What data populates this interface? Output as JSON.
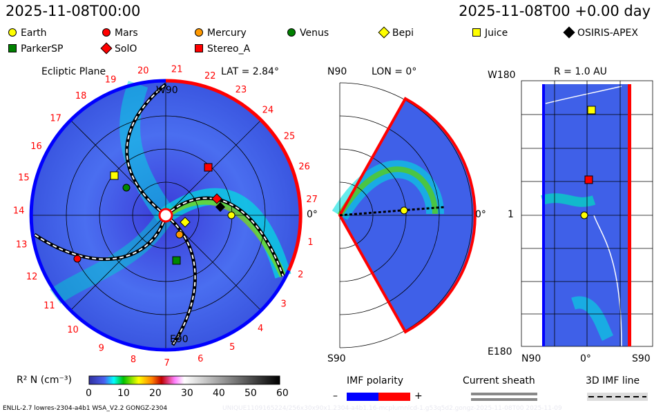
{
  "header": {
    "left_time": "2025-11-08T00:00",
    "right_time": "2025-11-08T00 +0.00 day"
  },
  "legend": [
    {
      "label": "Earth",
      "shape": "circle",
      "color": "#ffff00"
    },
    {
      "label": "Mars",
      "shape": "circle",
      "color": "#ff0000"
    },
    {
      "label": "Mercury",
      "shape": "circle",
      "color": "#ff9900"
    },
    {
      "label": "Venus",
      "shape": "circle",
      "color": "#008000"
    },
    {
      "label": "Bepi",
      "shape": "diamond",
      "color": "#ffff00"
    },
    {
      "label": "Juice",
      "shape": "square",
      "color": "#ffff00"
    },
    {
      "label": "OSIRIS-APEX",
      "shape": "diamond",
      "color": "#000000"
    },
    {
      "label": "ParkerSP",
      "shape": "square",
      "color": "#008000"
    },
    {
      "label": "SolO",
      "shape": "diamond",
      "color": "#ff0000"
    },
    {
      "label": "Stereo_A",
      "shape": "square",
      "color": "#ff0000"
    }
  ],
  "ecliptic": {
    "title": "Ecliptic Plane",
    "top_label": "W90",
    "bottom_label": "E90",
    "lat": "LAT = 2.84°",
    "right_label": "0°",
    "day_labels": [
      "1",
      "2",
      "3",
      "4",
      "5",
      "6",
      "7",
      "8",
      "9",
      "10",
      "11",
      "12",
      "13",
      "14",
      "15",
      "16",
      "17",
      "18",
      "19",
      "20",
      "21",
      "22",
      "23",
      "24",
      "25",
      "26",
      "27"
    ]
  },
  "meridional": {
    "top_label": "N90",
    "bottom_label": "S90",
    "lon": "LON = 0°",
    "right_label": "0°"
  },
  "earth_panel": {
    "title": "R = 1.0 AU",
    "top_left": "W180",
    "mid_left": "1",
    "bottom_left": "E180",
    "x_labels": [
      "N90",
      "0°",
      "S90"
    ]
  },
  "colorbar": {
    "label": "R² N (cm⁻³)",
    "ticks": [
      "0",
      "10",
      "20",
      "30",
      "40",
      "50",
      "60"
    ]
  },
  "imf": {
    "title": "IMF polarity",
    "minus": "–",
    "plus": "+",
    "neg_color": "#0000ff",
    "pos_color": "#ff0000"
  },
  "sheath": {
    "title": "Current sheath"
  },
  "imf_line": {
    "title": "3D IMF line"
  },
  "footer": {
    "left": "ENLIL-2.7 lowres-2304-a4b1 WSA_V2.2 GONGZ-2304",
    "right": "UNIQUE1109165224/256x30x90x1.2304-a4b1.16-mcplumnlcd-1.g53q5d2.gongz-2025-11-08T00   2025-11-09"
  },
  "chart_data": {
    "type": "heatmap",
    "title": "Ecliptic Plane",
    "colorbar_label": "R² N (cm⁻³)",
    "colorbar_range": [
      0,
      60
    ],
    "panels": [
      "Ecliptic Plane",
      "LON = 0°",
      "R = 1.0 AU"
    ]
  }
}
